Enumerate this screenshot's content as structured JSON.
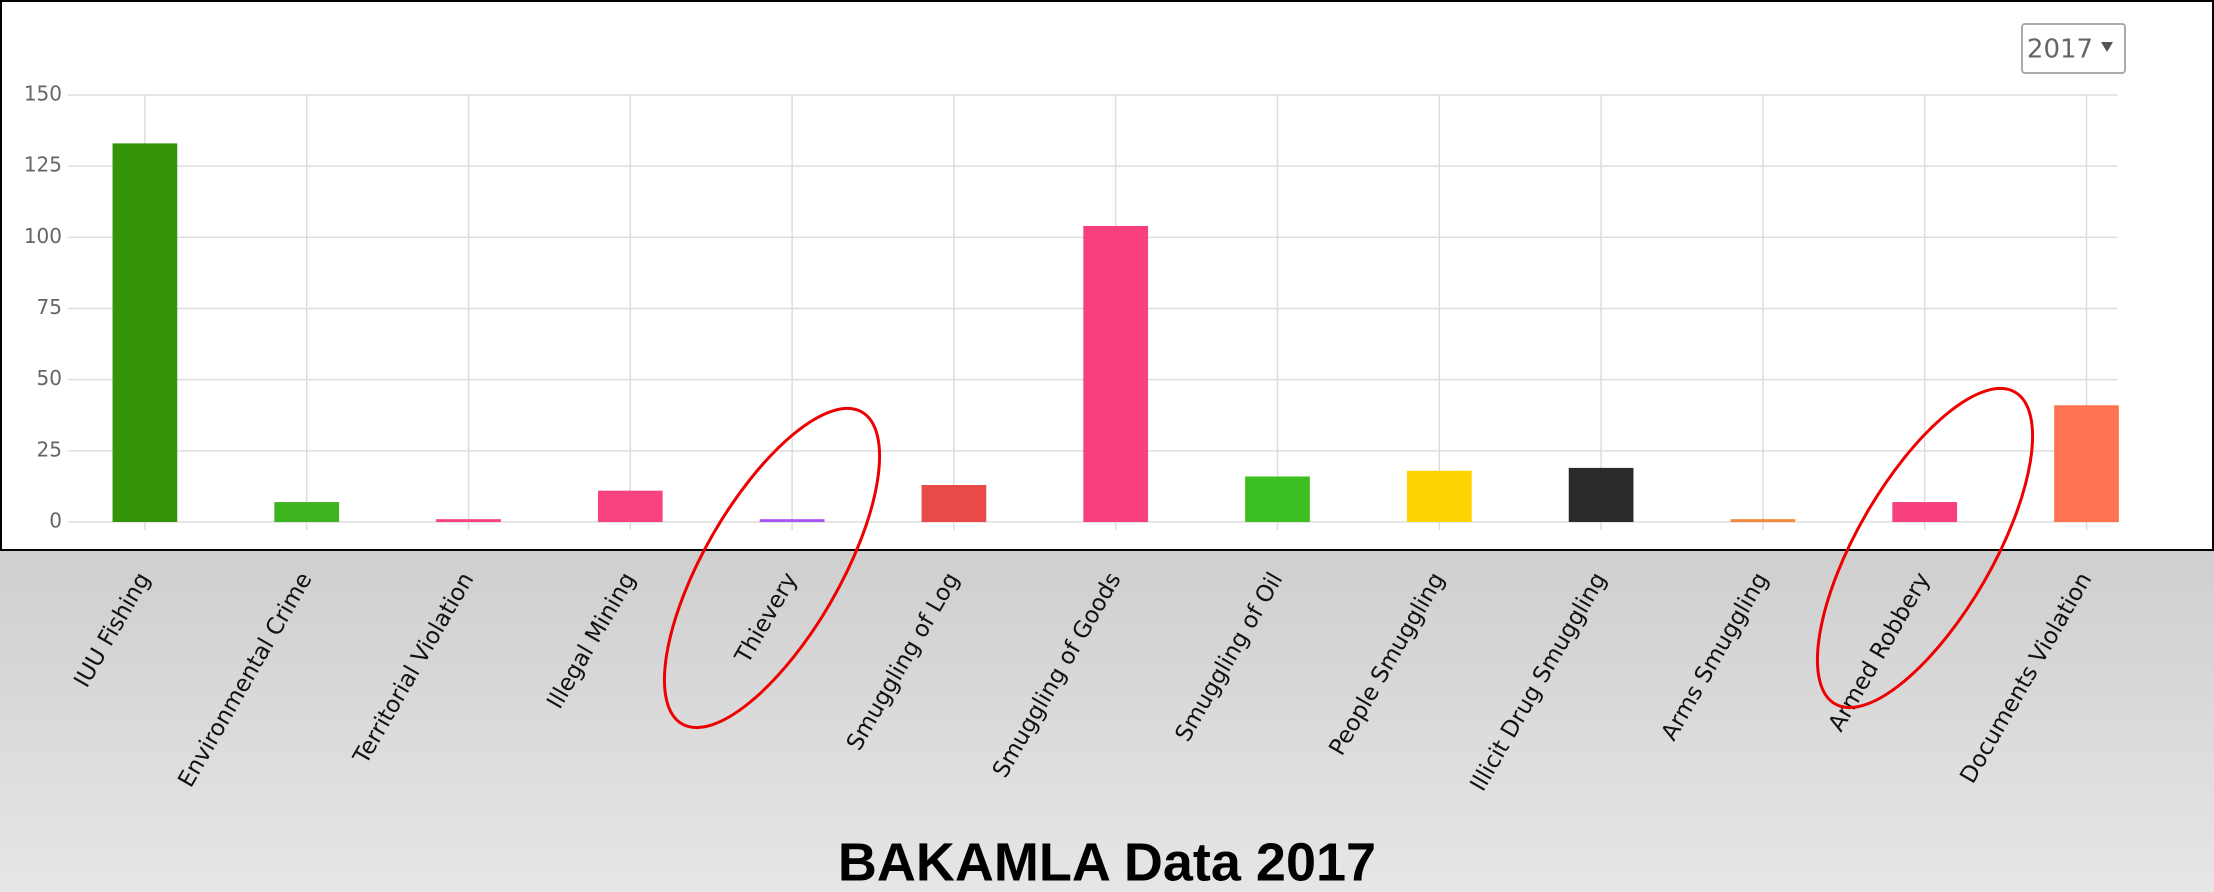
{
  "chart_data": {
    "type": "bar",
    "title": "BAKAMLA Data 2017",
    "selector": "2017",
    "categories": [
      "IUU Fishing",
      "Environmental Crime",
      "Territorial Violation",
      "Illegal Mining",
      "Thievery",
      "Smuggling of Log",
      "Smuggling of Goods",
      "Smuggling of Oil",
      "People Smuggling",
      "Illicit Drug Smuggling",
      "Arms Smuggling",
      "Armed Robbery",
      "Documents Violation"
    ],
    "values": [
      133,
      7,
      1,
      11,
      1,
      13,
      104,
      16,
      18,
      19,
      1,
      7,
      41
    ],
    "colors": [
      "#339409",
      "#3cb521",
      "#f94280",
      "#f94280",
      "#a855f7",
      "#e84a4a",
      "#f8407e",
      "#3cbf21",
      "#ffd300",
      "#2b2b2b",
      "#f58a3c",
      "#f8407e",
      "#ff7350"
    ],
    "ylim": [
      0,
      150
    ],
    "yticks": [
      0,
      25,
      50,
      75,
      100,
      125,
      150
    ],
    "grid": true
  }
}
